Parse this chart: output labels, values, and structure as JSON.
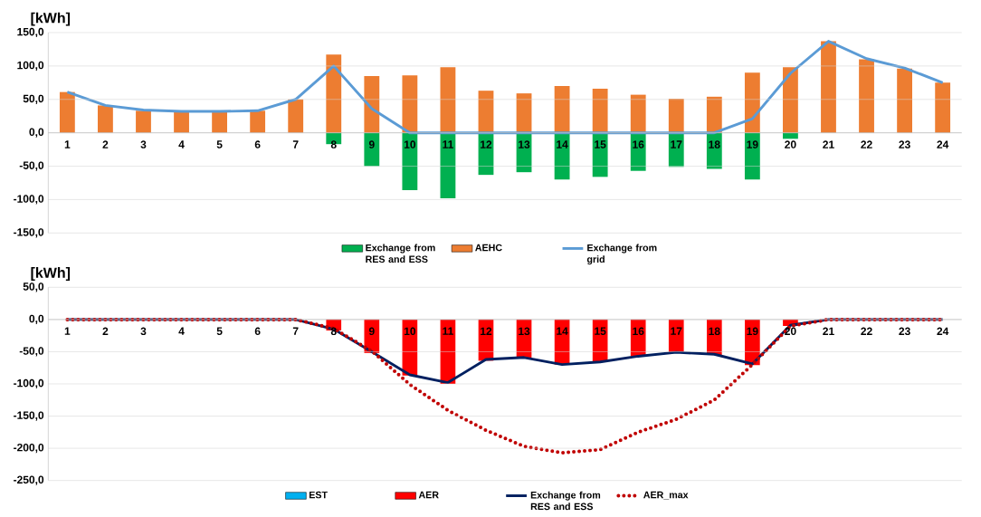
{
  "chart_data": [
    {
      "type": "bar",
      "ylabel": "[kWh]",
      "categories": [
        "1",
        "2",
        "3",
        "4",
        "5",
        "6",
        "7",
        "8",
        "9",
        "10",
        "11",
        "12",
        "13",
        "14",
        "15",
        "16",
        "17",
        "18",
        "19",
        "20",
        "21",
        "22",
        "23",
        "24"
      ],
      "series": [
        {
          "name": "Exchange from RES and ESS",
          "color": "#00b050",
          "values": [
            0,
            0,
            0,
            0,
            0,
            0,
            0,
            -17,
            -50,
            -86,
            -98,
            -63,
            -59,
            -70,
            -66,
            -57,
            -51,
            -54,
            -70,
            -9,
            0,
            0,
            0,
            0
          ]
        },
        {
          "name": "AEHC",
          "color": "#ed7d31",
          "values": [
            61,
            41,
            33,
            32,
            32,
            33,
            50,
            117,
            85,
            86,
            98,
            63,
            59,
            70,
            66,
            57,
            51,
            54,
            90,
            98,
            137,
            110,
            96,
            75
          ]
        },
        {
          "name": "Exchange from grid",
          "type": "line",
          "color": "#5b9bd5",
          "values": [
            61,
            41,
            34,
            32,
            32,
            33,
            50,
            100,
            36,
            0,
            0,
            0,
            0,
            0,
            0,
            0,
            0,
            0,
            21,
            89,
            137,
            111,
            97,
            75
          ]
        }
      ],
      "ylim": [
        -150,
        150
      ],
      "yticks": [
        {
          "value": -150,
          "label": "-150,0"
        },
        {
          "value": -100,
          "label": "-100,0"
        },
        {
          "value": -50,
          "label": "-50,0"
        },
        {
          "value": 0,
          "label": "0,0"
        },
        {
          "value": 50,
          "label": "50,0"
        },
        {
          "value": 100,
          "label": "100,0"
        },
        {
          "value": 150,
          "label": "150,0"
        }
      ],
      "grid": "y",
      "legend": "bottom",
      "stacked": true
    },
    {
      "type": "bar",
      "ylabel": "[kWh]",
      "categories": [
        "1",
        "2",
        "3",
        "4",
        "5",
        "6",
        "7",
        "8",
        "9",
        "10",
        "11",
        "12",
        "13",
        "14",
        "15",
        "16",
        "17",
        "18",
        "19",
        "20",
        "21",
        "22",
        "23",
        "24"
      ],
      "series": [
        {
          "name": "EST",
          "color": "#00b0f0",
          "values": [
            0,
            0,
            0,
            0,
            0,
            0,
            0,
            0,
            0,
            0,
            0,
            0,
            0,
            0,
            0,
            0,
            0,
            0,
            0,
            0,
            0,
            0,
            0,
            0
          ]
        },
        {
          "name": "AER",
          "color": "#ff0000",
          "values": [
            0,
            0,
            0,
            0,
            0,
            0,
            0,
            -17,
            -52,
            -87,
            -100,
            -64,
            -60,
            -70,
            -66,
            -57,
            -52,
            -55,
            -71,
            -10,
            0,
            0,
            0,
            0
          ]
        },
        {
          "name": "Exchange from RES and ESS",
          "type": "line",
          "color": "#002060",
          "values": [
            0,
            0,
            0,
            0,
            0,
            0,
            0,
            -15,
            -50,
            -86,
            -98,
            -62,
            -59,
            -70,
            -66,
            -57,
            -51,
            -54,
            -69,
            -9,
            0,
            0,
            0,
            0
          ]
        },
        {
          "name": "AER_max",
          "type": "line",
          "color": "#c00000",
          "line_style": "dotted",
          "values": [
            0,
            0,
            0,
            0,
            0,
            0,
            0,
            -14,
            -49,
            -101,
            -141,
            -172,
            -197,
            -207,
            -202,
            -175,
            -155,
            -125,
            -70,
            -10,
            0,
            0,
            0,
            0
          ]
        }
      ],
      "ylim": [
        -250,
        50
      ],
      "yticks": [
        {
          "value": -250,
          "label": "-250,0"
        },
        {
          "value": -200,
          "label": "-200,0"
        },
        {
          "value": -150,
          "label": "-150,0"
        },
        {
          "value": -100,
          "label": "-100,0"
        },
        {
          "value": -50,
          "label": "-50,0"
        },
        {
          "value": 0,
          "label": "0,0"
        },
        {
          "value": 50,
          "label": "50,0"
        }
      ],
      "grid": "y",
      "legend": "bottom"
    }
  ]
}
